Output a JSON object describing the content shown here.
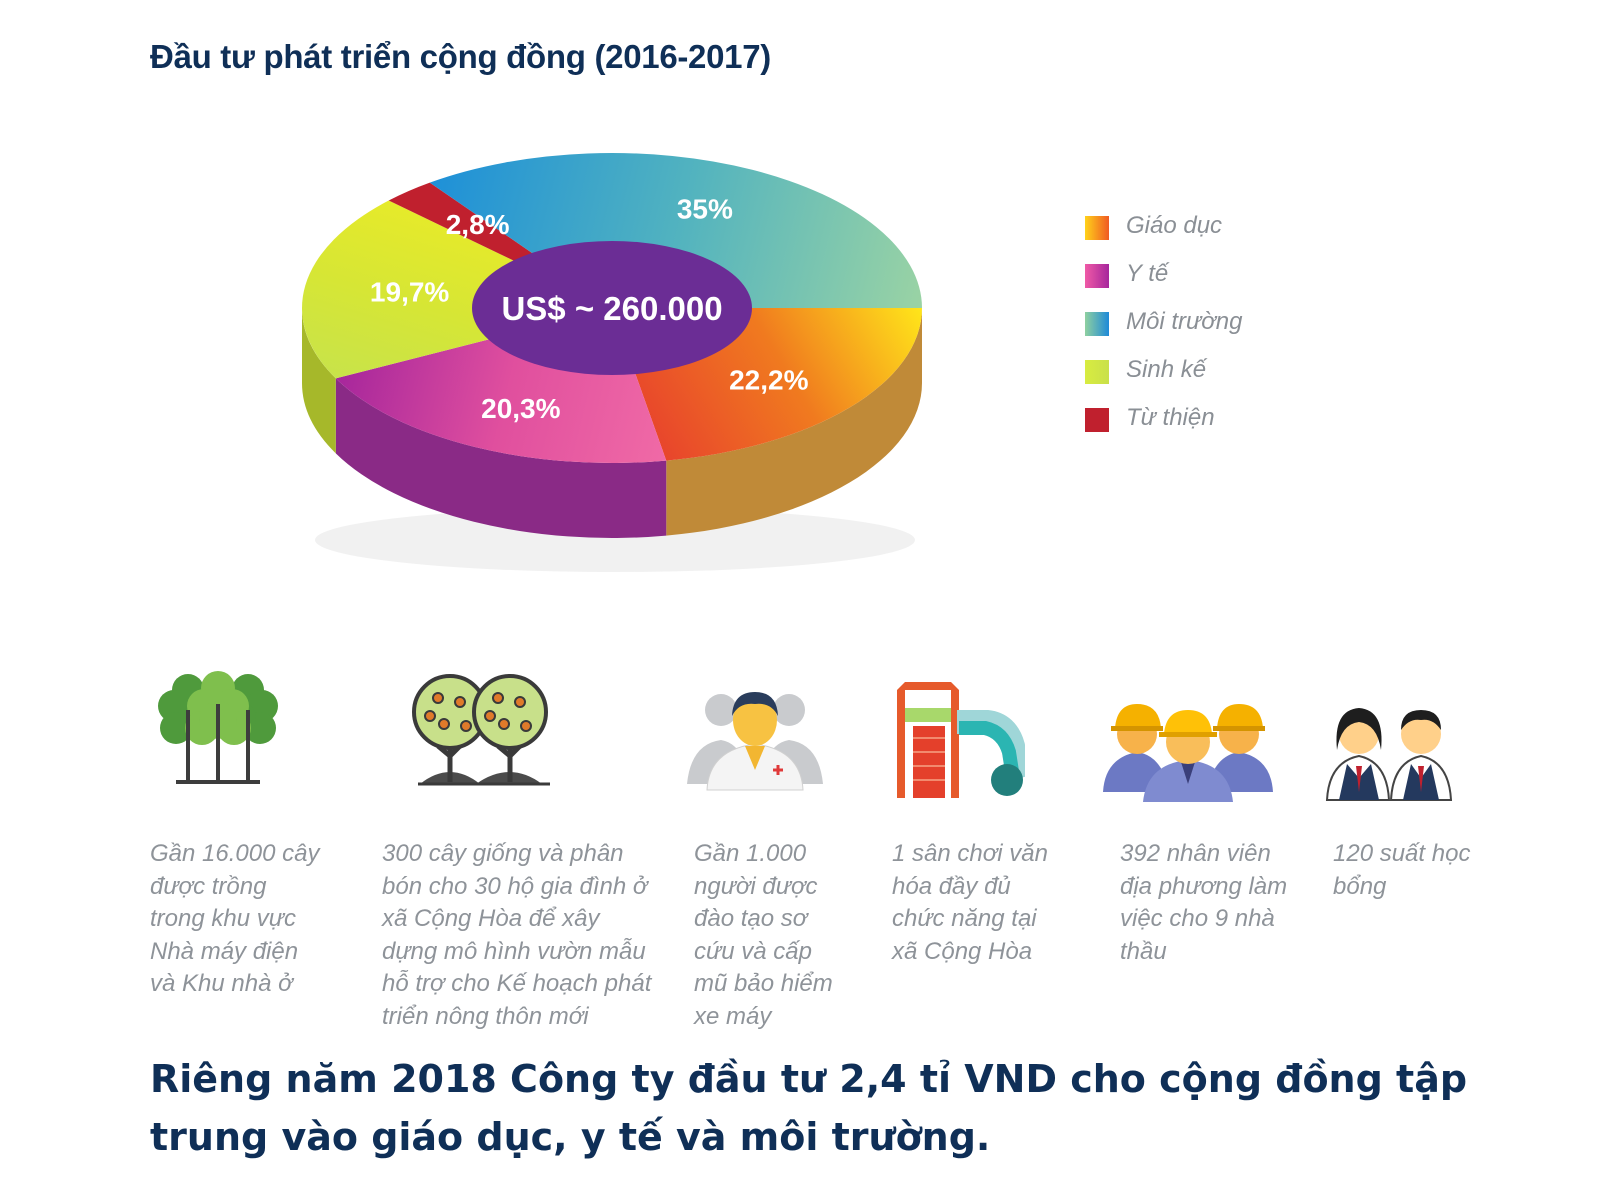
{
  "title": "Đầu tư phát triển cộng đồng (2016-2017)",
  "chart_data": {
    "type": "pie",
    "center_label": "US$ ~ 260.000",
    "slices": [
      {
        "name": "Giáo dục",
        "value": 22.2,
        "label": "22,2%",
        "colors": [
          "#ffe61a",
          "#f07a1f",
          "#e8452c"
        ],
        "side": "#c08a38"
      },
      {
        "name": "Y tế",
        "value": 20.3,
        "label": "20,3%",
        "colors": [
          "#f06aa6",
          "#e04f9e",
          "#a6269c"
        ],
        "side": "#8a2a86"
      },
      {
        "name": "Sinh kế",
        "value": 19.7,
        "label": "19,7%",
        "colors": [
          "#c8e34a",
          "#d6e635",
          "#e6ea2a"
        ],
        "side": "#a6b82a"
      },
      {
        "name": "Từ thiện",
        "value": 2.8,
        "label": "2,8%",
        "colors": [
          "#c0202e",
          "#c0202e",
          "#c0202e"
        ],
        "side": "#8d1620"
      },
      {
        "name": "Môi trường",
        "value": 35,
        "label": "35%",
        "colors": [
          "#1e90d8",
          "#52b3bf",
          "#9ad3a4"
        ],
        "side": "#0f86d6"
      }
    ],
    "legend": {
      "position": "right",
      "items": [
        {
          "name": "Giáo dục",
          "colors": [
            "#ffd21a",
            "#f05a23"
          ]
        },
        {
          "name": "Y tế",
          "colors": [
            "#f05aa6",
            "#a6269c"
          ]
        },
        {
          "name": "Môi trường",
          "colors": [
            "#8fd0a0",
            "#1e8ad8"
          ]
        },
        {
          "name": "Sinh kế",
          "colors": [
            "#d8ec40",
            "#c9e04a"
          ]
        },
        {
          "name": "Từ thiện",
          "colors": [
            "#c0202e",
            "#c0202e"
          ]
        }
      ]
    },
    "center_color": "#6b2d95"
  },
  "stats": [
    {
      "icon": "trees-icon",
      "text": "Gần 16.000 cây được trồng trong khu vực Nhà máy điện và Khu nhà ở"
    },
    {
      "icon": "fruit-trees-icon",
      "text": "300 cây giống và phân bón cho 30 hộ gia đình ở xã Cộng Hòa để xây dựng mô hình vườn mẫu hỗ trợ cho Kế hoạch phát triển nông thôn mới"
    },
    {
      "icon": "medical-staff-icon",
      "text": "Gần 1.000 người được đào tạo sơ cứu và cấp mũ bảo hiểm xe máy"
    },
    {
      "icon": "playground-icon",
      "text": "1 sân chơi văn hóa đầy đủ chức năng tại xã Cộng Hòa"
    },
    {
      "icon": "workers-icon",
      "text": "392 nhân viên địa phương làm việc cho 9 nhà thầu"
    },
    {
      "icon": "students-icon",
      "text": "120 suất học bổng"
    }
  ],
  "summary": "Riêng năm 2018  Công ty đầu tư 2,4 tỉ VND cho cộng đồng tập trung vào giáo dục, y tế và môi trường."
}
